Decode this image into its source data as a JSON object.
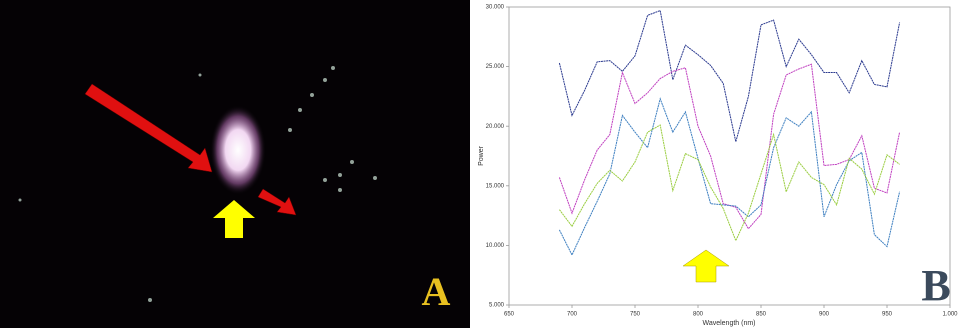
{
  "image_panel": {
    "label": "A"
  },
  "chart_data": {
    "type": "line",
    "panel_label": "B",
    "x_label": "Wavelength (nm)",
    "y_label": "Power",
    "x": [
      690,
      700,
      710,
      720,
      730,
      740,
      750,
      760,
      770,
      780,
      790,
      800,
      810,
      820,
      830,
      840,
      850,
      860,
      870,
      880,
      890,
      900,
      910,
      920,
      930,
      940,
      950,
      960
    ],
    "series": [
      {
        "color": "#2b3a8f",
        "values": [
          25300,
          20900,
          23000,
          25400,
          25500,
          24600,
          25900,
          29300,
          29700,
          23900,
          26800,
          26000,
          25100,
          23600,
          18700,
          22500,
          28500,
          28900,
          25000,
          27300,
          26000,
          24500,
          24500,
          22800,
          25500,
          23500,
          23300,
          28700
        ]
      },
      {
        "color": "#c040c0",
        "values": [
          15700,
          12700,
          15500,
          18000,
          19300,
          24500,
          21900,
          22800,
          24000,
          24600,
          24900,
          20000,
          17500,
          13500,
          13200,
          11400,
          12600,
          21000,
          24300,
          24800,
          25200,
          16700,
          16800,
          17200,
          19200,
          14800,
          14400,
          19500
        ]
      },
      {
        "color": "#3d7fc0",
        "values": [
          11300,
          9200,
          11500,
          13700,
          16000,
          20900,
          19500,
          18200,
          22300,
          19500,
          21200,
          17300,
          13500,
          13400,
          13300,
          12400,
          13400,
          18200,
          20700,
          20000,
          21200,
          12400,
          15100,
          17100,
          17800,
          10900,
          9900,
          14500
        ]
      },
      {
        "color": "#9acd40",
        "values": [
          13000,
          11600,
          13500,
          15200,
          16300,
          15400,
          17000,
          19500,
          20100,
          14600,
          17700,
          17200,
          14900,
          13100,
          10400,
          12700,
          16000,
          19300,
          14500,
          17000,
          15700,
          15100,
          13400,
          17300,
          16400,
          14300,
          17600,
          16800
        ]
      }
    ],
    "xlim": [
      650,
      1000
    ],
    "xticks": [
      650,
      700,
      750,
      800,
      850,
      900,
      950,
      {
        "value": 1000,
        "label": "1.000"
      }
    ],
    "ylim": [
      5000,
      30000
    ],
    "yticks": [
      {
        "value": 5000,
        "label": "5.000"
      },
      {
        "value": 10000,
        "label": "10.000"
      },
      {
        "value": 15000,
        "label": "15.000"
      },
      {
        "value": 20000,
        "label": "20.000"
      },
      {
        "value": 25000,
        "label": "25.000"
      },
      {
        "value": 30000,
        "label": "30.000"
      }
    ]
  }
}
